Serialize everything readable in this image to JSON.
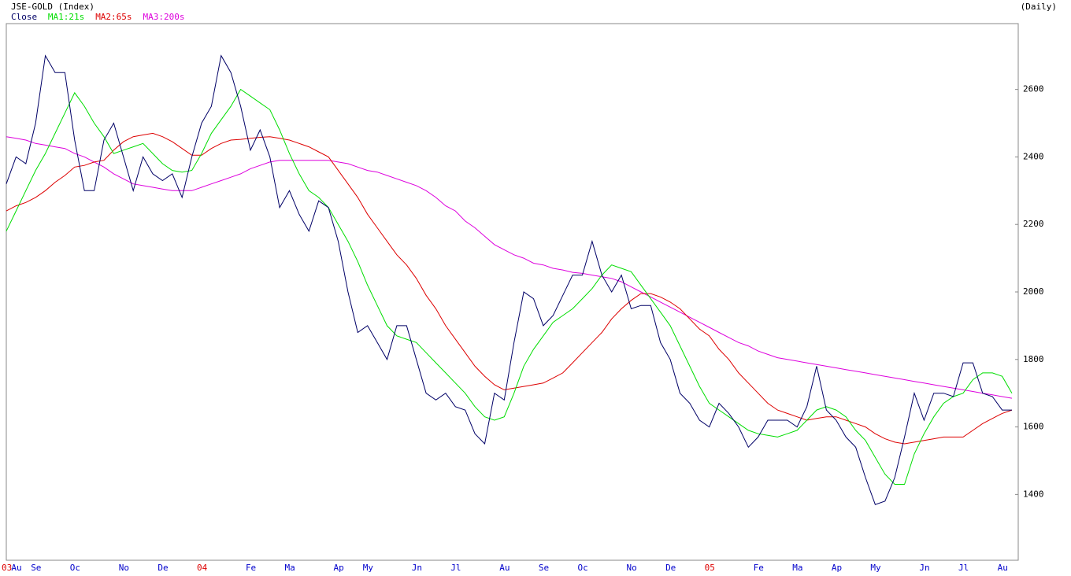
{
  "chart_data": {
    "type": "line",
    "title": "JSE-GOLD (Index)",
    "subtitle": "(Daily)",
    "categories": [
      "03",
      "Au",
      null,
      "Se",
      null,
      null,
      null,
      "Oc",
      null,
      null,
      null,
      null,
      "No",
      null,
      null,
      null,
      "De",
      null,
      null,
      null,
      "04",
      null,
      null,
      null,
      null,
      "Fe",
      null,
      null,
      null,
      "Ma",
      null,
      null,
      null,
      null,
      "Ap",
      null,
      null,
      "My",
      null,
      null,
      null,
      null,
      "Jn",
      null,
      null,
      null,
      "Jl",
      null,
      null,
      null,
      null,
      "Au",
      null,
      null,
      null,
      "Se",
      null,
      null,
      null,
      "Oc",
      null,
      null,
      null,
      null,
      "No",
      null,
      null,
      null,
      "De",
      null,
      null,
      null,
      "05",
      null,
      null,
      null,
      null,
      "Fe",
      null,
      null,
      null,
      "Ma",
      null,
      null,
      null,
      "Ap",
      null,
      null,
      null,
      "My",
      null,
      null,
      null,
      null,
      "Jn",
      null,
      null,
      null,
      "Jl",
      null,
      null,
      null,
      "Au",
      null
    ],
    "series": [
      {
        "name": "Close",
        "color": "#000066",
        "values": [
          2320,
          2400,
          2380,
          2500,
          2700,
          2650,
          2650,
          2450,
          2300,
          2300,
          2450,
          2500,
          2400,
          2300,
          2400,
          2350,
          2330,
          2350,
          2280,
          2400,
          2500,
          2550,
          2700,
          2650,
          2550,
          2420,
          2480,
          2400,
          2250,
          2300,
          2230,
          2180,
          2270,
          2250,
          2150,
          2000,
          1880,
          1900,
          1850,
          1800,
          1900,
          1900,
          1800,
          1700,
          1680,
          1700,
          1660,
          1650,
          1580,
          1550,
          1700,
          1680,
          1850,
          2000,
          1980,
          1900,
          1930,
          1990,
          2050,
          2050,
          2150,
          2050,
          2000,
          2050,
          1950,
          1960,
          1960,
          1850,
          1800,
          1700,
          1670,
          1620,
          1600,
          1670,
          1640,
          1600,
          1540,
          1570,
          1620,
          1620,
          1620,
          1600,
          1660,
          1780,
          1650,
          1620,
          1570,
          1540,
          1450,
          1370,
          1380,
          1450,
          1570,
          1700,
          1620,
          1700,
          1700,
          1690,
          1790,
          1790,
          1700,
          1690,
          1650,
          1650
        ]
      },
      {
        "name": "MA1:21s",
        "color": "#00dd00",
        "values": [
          2180,
          2240,
          2300,
          2360,
          2410,
          2470,
          2530,
          2590,
          2550,
          2500,
          2460,
          2410,
          2420,
          2430,
          2440,
          2410,
          2380,
          2360,
          2355,
          2360,
          2410,
          2470,
          2510,
          2550,
          2600,
          2580,
          2560,
          2540,
          2480,
          2410,
          2350,
          2300,
          2280,
          2250,
          2200,
          2150,
          2090,
          2020,
          1960,
          1900,
          1870,
          1860,
          1850,
          1820,
          1790,
          1760,
          1730,
          1700,
          1660,
          1630,
          1620,
          1630,
          1700,
          1780,
          1830,
          1870,
          1910,
          1930,
          1950,
          1980,
          2010,
          2050,
          2080,
          2070,
          2060,
          2020,
          1980,
          1940,
          1900,
          1840,
          1780,
          1720,
          1670,
          1650,
          1630,
          1610,
          1590,
          1580,
          1575,
          1570,
          1580,
          1590,
          1620,
          1650,
          1660,
          1650,
          1630,
          1590,
          1560,
          1510,
          1460,
          1430,
          1430,
          1520,
          1580,
          1630,
          1670,
          1690,
          1700,
          1740,
          1760,
          1760,
          1750,
          1700
        ]
      },
      {
        "name": "MA2:65s",
        "color": "#dd0000",
        "values": [
          2240,
          2255,
          2265,
          2280,
          2300,
          2325,
          2345,
          2370,
          2375,
          2385,
          2390,
          2420,
          2445,
          2460,
          2465,
          2470,
          2460,
          2445,
          2425,
          2405,
          2405,
          2425,
          2440,
          2450,
          2452,
          2455,
          2458,
          2460,
          2455,
          2450,
          2440,
          2430,
          2415,
          2400,
          2360,
          2320,
          2280,
          2230,
          2190,
          2150,
          2110,
          2080,
          2040,
          1990,
          1950,
          1900,
          1860,
          1820,
          1780,
          1750,
          1725,
          1710,
          1715,
          1720,
          1725,
          1730,
          1745,
          1760,
          1790,
          1820,
          1850,
          1880,
          1920,
          1950,
          1975,
          1995,
          1995,
          1985,
          1970,
          1950,
          1920,
          1890,
          1870,
          1830,
          1800,
          1760,
          1730,
          1700,
          1670,
          1650,
          1640,
          1630,
          1620,
          1625,
          1630,
          1630,
          1620,
          1610,
          1600,
          1580,
          1565,
          1555,
          1550,
          1555,
          1560,
          1565,
          1570,
          1570,
          1570,
          1590,
          1610,
          1625,
          1640,
          1650
        ]
      },
      {
        "name": "MA3:200s",
        "color": "#dd00dd",
        "values": [
          2460,
          2455,
          2450,
          2440,
          2435,
          2430,
          2425,
          2410,
          2400,
          2385,
          2370,
          2350,
          2335,
          2320,
          2315,
          2310,
          2305,
          2300,
          2300,
          2300,
          2310,
          2320,
          2330,
          2340,
          2350,
          2365,
          2375,
          2385,
          2390,
          2390,
          2390,
          2390,
          2390,
          2390,
          2385,
          2380,
          2370,
          2360,
          2355,
          2345,
          2335,
          2325,
          2315,
          2300,
          2280,
          2255,
          2240,
          2210,
          2190,
          2165,
          2140,
          2125,
          2110,
          2100,
          2085,
          2080,
          2070,
          2065,
          2058,
          2055,
          2050,
          2045,
          2040,
          2030,
          2015,
          2000,
          1985,
          1970,
          1955,
          1940,
          1925,
          1910,
          1895,
          1880,
          1865,
          1850,
          1840,
          1825,
          1815,
          1805,
          1800,
          1795,
          1790,
          1785,
          1780,
          1775,
          1770,
          1765,
          1760,
          1755,
          1750,
          1745,
          1740,
          1735,
          1730,
          1725,
          1720,
          1715,
          1710,
          1705,
          1700,
          1695,
          1690,
          1685
        ]
      }
    ],
    "ylim": [
      1205,
      2795
    ],
    "yticks": [
      1400,
      1600,
      1800,
      2000,
      2200,
      2400,
      2600
    ],
    "axis_side": "right",
    "grid": false,
    "month_label_color": "#0000cc",
    "year_label_color": "#dd0000"
  }
}
